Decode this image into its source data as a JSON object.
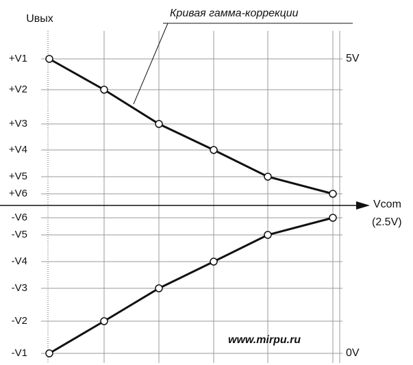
{
  "axis_label": "Uвых",
  "caption": "Кривая гамма-коррекции",
  "levels_positive": [
    "+V1",
    "+V2",
    "+V3",
    "+V4",
    "+V5",
    "+V6"
  ],
  "levels_negative": [
    "-V6",
    "-V5",
    "-V4",
    "-V3",
    "-V2",
    "-V1"
  ],
  "right_top": "5V",
  "right_bottom": "0V",
  "x_axis_label": "Vcom",
  "x_axis_sublabel": "(2.5V)",
  "watermark": "www.mirpu.ru"
}
